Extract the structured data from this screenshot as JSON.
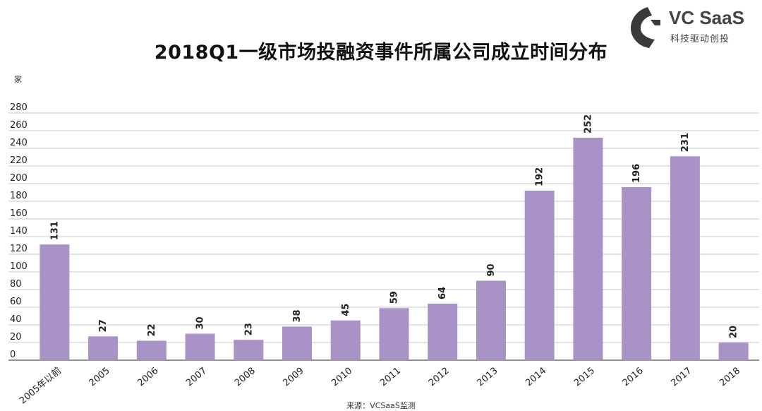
{
  "title": "2018Q1一级市场投融资事件所属公司成立时间分布",
  "unit_label": "家",
  "source": "来源：VCSaaS监测",
  "logo": {
    "name": "VC SaaS",
    "tagline": "科技驱动创投",
    "icon": "vc-saas-logo-icon"
  },
  "colors": {
    "bar": "#a993c6",
    "grid": "#b8b8b8",
    "logo": "#3a3a3a"
  },
  "chart_data": {
    "type": "bar",
    "title": "2018Q1一级市场投融资事件所属公司成立时间分布",
    "xlabel": "",
    "ylabel": "家",
    "ylim": [
      0,
      280
    ],
    "yticks": [
      0,
      20,
      40,
      60,
      80,
      100,
      120,
      140,
      160,
      180,
      200,
      220,
      240,
      260,
      280
    ],
    "grid": true,
    "categories": [
      "2005年以前",
      "2005",
      "2006",
      "2007",
      "2008",
      "2009",
      "2010",
      "2011",
      "2012",
      "2013",
      "2014",
      "2015",
      "2016",
      "2017",
      "2018"
    ],
    "values": [
      131,
      27,
      22,
      30,
      23,
      38,
      45,
      59,
      64,
      90,
      192,
      252,
      196,
      231,
      20
    ],
    "value_labels": [
      "131",
      "27",
      "22",
      "30",
      "23",
      "38",
      "45",
      "59",
      "64",
      "90",
      "192",
      "252",
      "196",
      "231",
      "20"
    ]
  }
}
